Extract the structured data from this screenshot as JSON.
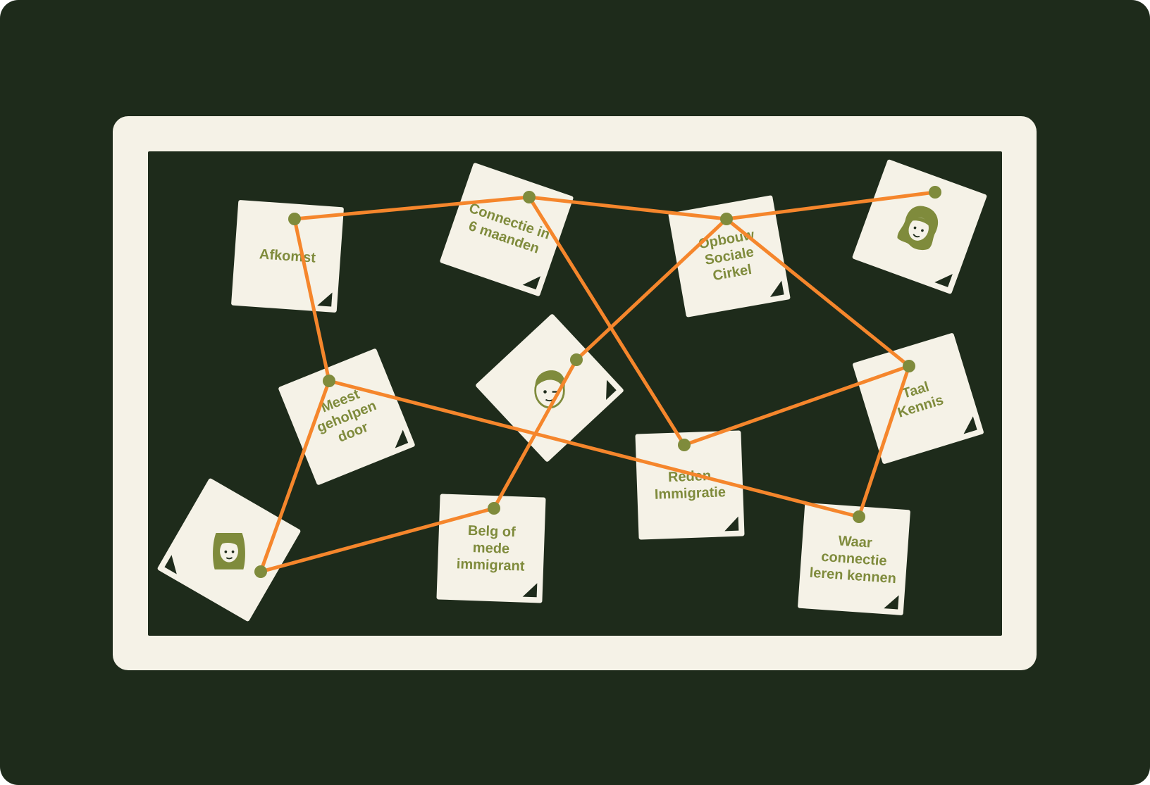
{
  "colors": {
    "background": "#1e2b1b",
    "frame": "#f5f2e7",
    "note_paper": "#f5f2e7",
    "text_olive": "#7f8b3c",
    "string": "#f5862c",
    "pin": "#7f8b3c"
  },
  "notes": {
    "afkomst": {
      "label": "Afkomst"
    },
    "connectie": {
      "label": "Connectie in\n6 maanden"
    },
    "opbouw": {
      "label": "Opbouw\nSociale\nCirkel"
    },
    "avatar_woman": {
      "icon": "woman-avatar-icon"
    },
    "meest": {
      "label": "Meest\ngeholpen\ndoor"
    },
    "avatar_man": {
      "icon": "winking-man-avatar-icon"
    },
    "taal": {
      "label": "Taal\nKennis"
    },
    "avatar_girl": {
      "icon": "girl-avatar-icon"
    },
    "belg": {
      "label": "Belg of\nmede\nimmigrant"
    },
    "reden": {
      "label": "Reden\nImmigratie"
    },
    "waar": {
      "label": "Waar\nconnectie\nleren kennen"
    }
  },
  "connections": [
    [
      "afkomst",
      "connectie"
    ],
    [
      "connectie",
      "opbouw"
    ],
    [
      "opbouw",
      "avatar_woman"
    ],
    [
      "afkomst",
      "meest"
    ],
    [
      "meest",
      "avatar_girl"
    ],
    [
      "avatar_girl",
      "belg"
    ],
    [
      "belg",
      "avatar_man"
    ],
    [
      "avatar_man",
      "opbouw"
    ],
    [
      "opbouw",
      "taal"
    ],
    [
      "taal",
      "reden"
    ],
    [
      "connectie",
      "reden"
    ],
    [
      "meest",
      "waar"
    ],
    [
      "waar",
      "taal"
    ]
  ]
}
